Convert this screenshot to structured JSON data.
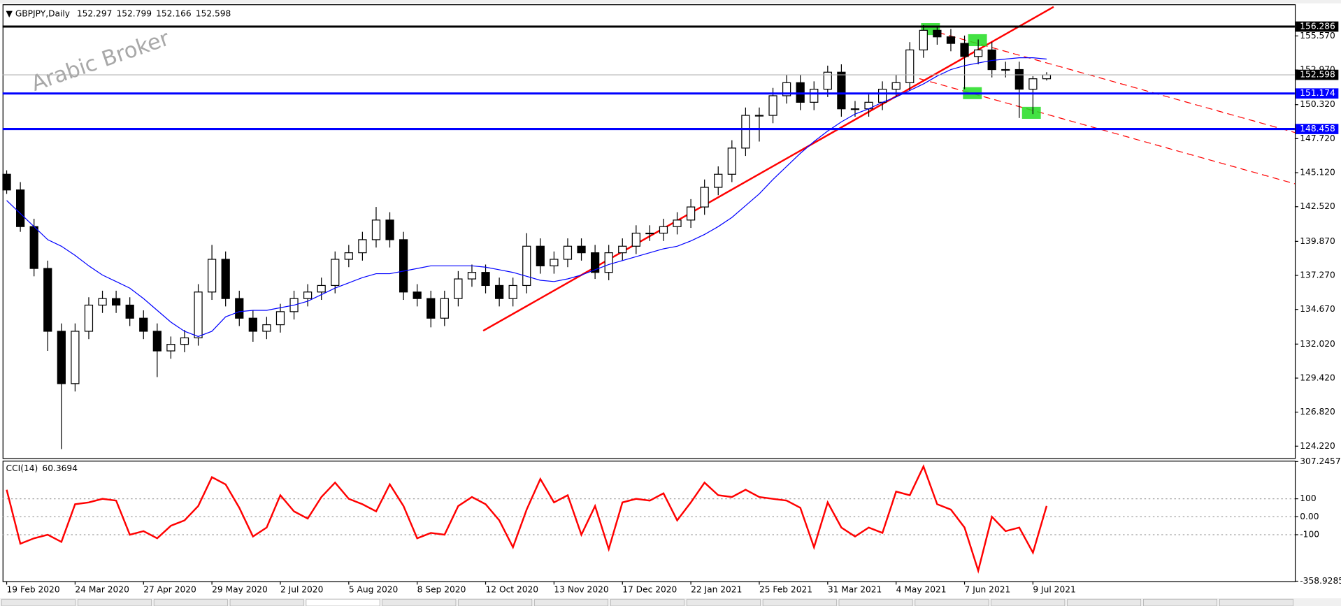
{
  "chart_data": [
    {
      "type": "candlestick",
      "title": "GBPJPY,Daily",
      "watermark": "Arabic Broker",
      "categories": [
        "19 Feb 2020",
        null,
        null,
        null,
        null,
        "24 Mar 2020",
        null,
        null,
        null,
        null,
        "27 Apr 2020",
        null,
        null,
        null,
        null,
        "29 May 2020",
        null,
        null,
        null,
        null,
        "2 Jul 2020",
        null,
        null,
        null,
        null,
        "5 Aug 2020",
        null,
        null,
        null,
        null,
        "8 Sep 2020",
        null,
        null,
        null,
        null,
        "12 Oct 2020",
        null,
        null,
        null,
        null,
        "13 Nov 2020",
        null,
        null,
        null,
        null,
        "17 Dec 2020",
        null,
        null,
        null,
        null,
        "22 Jan 2021",
        null,
        null,
        null,
        null,
        "25 Feb 2021",
        null,
        null,
        null,
        null,
        "31 Mar 2021",
        null,
        null,
        null,
        null,
        "4 May 2021",
        null,
        null,
        null,
        null,
        "7 Jun 2021",
        null,
        null,
        null,
        null,
        "9 Jul 2021",
        null
      ],
      "open": [
        145.0,
        143.8,
        141.0,
        137.8,
        133.0,
        129.0,
        133.0,
        135.0,
        135.5,
        135.0,
        134.0,
        133.0,
        131.5,
        132.0,
        132.5,
        136.0,
        138.5,
        135.5,
        134.0,
        133.0,
        133.5,
        134.5,
        135.5,
        136.0,
        136.5,
        138.5,
        139.0,
        140.0,
        141.5,
        140.0,
        136.0,
        135.5,
        134.0,
        135.5,
        137.0,
        137.5,
        136.5,
        135.5,
        136.5,
        139.5,
        138.0,
        138.5,
        139.5,
        139.0,
        137.5,
        139.0,
        139.5,
        140.5,
        140.5,
        141.0,
        141.5,
        142.5,
        144.0,
        145.0,
        147.0,
        149.5,
        149.5,
        151.0,
        152.0,
        150.5,
        151.5,
        152.8,
        150.0,
        150.0,
        150.5,
        151.5,
        152.0,
        154.5,
        156.0,
        155.5,
        155.0,
        154.0,
        154.5,
        153.0,
        153.0,
        151.5,
        152.297
      ],
      "high": [
        145.3,
        144.4,
        141.6,
        138.4,
        133.6,
        133.6,
        135.6,
        136.1,
        136.1,
        135.6,
        134.6,
        133.6,
        132.6,
        133.1,
        136.6,
        139.6,
        139.1,
        136.1,
        134.6,
        134.1,
        135.1,
        136.1,
        136.6,
        137.1,
        139.1,
        139.6,
        140.6,
        142.5,
        142.1,
        140.6,
        136.6,
        136.1,
        136.1,
        137.6,
        138.1,
        138.1,
        137.1,
        137.1,
        140.5,
        140.1,
        139.1,
        140.1,
        140.1,
        139.6,
        139.6,
        140.1,
        141.1,
        141.1,
        141.6,
        142.1,
        143.1,
        144.6,
        145.6,
        147.6,
        150.1,
        150.1,
        151.6,
        152.6,
        152.6,
        152.1,
        153.3,
        153.4,
        150.6,
        151.1,
        152.1,
        152.6,
        155.1,
        156.4,
        156.3,
        156.1,
        155.6,
        155.3,
        155.1,
        153.6,
        153.6,
        152.5,
        152.799
      ],
      "low": [
        143.5,
        140.6,
        137.2,
        131.5,
        124.0,
        128.4,
        132.4,
        134.4,
        134.4,
        133.4,
        132.4,
        129.5,
        130.9,
        131.4,
        131.9,
        135.4,
        134.9,
        133.4,
        132.2,
        132.4,
        132.9,
        133.9,
        134.9,
        135.4,
        135.9,
        137.9,
        138.4,
        139.4,
        139.4,
        135.4,
        134.9,
        133.3,
        133.4,
        134.9,
        136.4,
        135.9,
        134.9,
        134.9,
        135.9,
        137.4,
        137.4,
        137.9,
        138.4,
        137.0,
        136.9,
        138.4,
        138.9,
        139.9,
        139.9,
        140.4,
        140.9,
        141.9,
        143.4,
        144.4,
        146.4,
        147.5,
        148.9,
        150.4,
        149.9,
        149.9,
        150.9,
        149.4,
        149.4,
        149.4,
        149.9,
        150.9,
        151.4,
        153.9,
        154.9,
        154.4,
        151.5,
        153.4,
        152.4,
        152.4,
        149.3,
        149.6,
        152.166
      ],
      "close": [
        143.8,
        141.0,
        137.8,
        133.0,
        129.0,
        133.0,
        135.0,
        135.5,
        135.0,
        134.0,
        133.0,
        131.5,
        132.0,
        132.5,
        136.0,
        138.5,
        135.5,
        134.0,
        133.0,
        133.5,
        134.5,
        135.5,
        136.0,
        136.5,
        138.5,
        139.0,
        140.0,
        141.5,
        140.0,
        136.0,
        135.5,
        134.0,
        135.5,
        137.0,
        137.5,
        136.5,
        135.5,
        136.5,
        139.5,
        138.0,
        138.5,
        139.5,
        139.0,
        137.5,
        139.0,
        139.5,
        140.5,
        140.5,
        141.0,
        141.5,
        142.5,
        144.0,
        145.0,
        147.0,
        149.5,
        149.5,
        151.0,
        152.0,
        150.5,
        151.5,
        152.8,
        150.0,
        150.0,
        150.5,
        151.5,
        152.0,
        154.5,
        156.0,
        155.5,
        155.0,
        154.0,
        154.5,
        153.0,
        153.0,
        151.5,
        152.297,
        152.598
      ],
      "ma": {
        "color": "#0000ff",
        "values": [
          143.0,
          142.0,
          141.0,
          140.0,
          139.5,
          138.8,
          138.0,
          137.3,
          136.8,
          136.3,
          135.5,
          134.6,
          133.7,
          133.0,
          132.6,
          133.0,
          134.1,
          134.5,
          134.6,
          134.6,
          134.8,
          135.0,
          135.3,
          135.8,
          136.3,
          136.7,
          137.1,
          137.4,
          137.4,
          137.6,
          137.8,
          138.0,
          138.0,
          138.0,
          138.0,
          137.9,
          137.7,
          137.5,
          137.2,
          136.9,
          136.8,
          137.0,
          137.3,
          137.7,
          138.1,
          138.4,
          138.7,
          139.0,
          139.3,
          139.5,
          139.9,
          140.4,
          141.0,
          141.7,
          142.6,
          143.5,
          144.6,
          145.6,
          146.6,
          147.5,
          148.3,
          149.0,
          149.6,
          150.0,
          150.5,
          150.9,
          151.4,
          151.9,
          152.5,
          153.0,
          153.3,
          153.5,
          153.7,
          153.8,
          153.9,
          153.9,
          153.8
        ]
      },
      "ylim": [
        123.24,
        157.99
      ],
      "yticks": [
        {
          "value": 155.57,
          "label": "155.570"
        },
        {
          "value": 152.97,
          "label": "152.970"
        },
        {
          "value": 150.32,
          "label": "150.320"
        },
        {
          "value": 147.72,
          "label": "147.720"
        },
        {
          "value": 145.12,
          "label": "145.120"
        },
        {
          "value": 142.52,
          "label": "142.520"
        },
        {
          "value": 139.87,
          "label": "139.870"
        },
        {
          "value": 137.27,
          "label": "137.270"
        },
        {
          "value": 134.67,
          "label": "134.670"
        },
        {
          "value": 132.02,
          "label": "132.020"
        },
        {
          "value": 129.42,
          "label": "129.420"
        },
        {
          "value": 126.82,
          "label": "126.820"
        },
        {
          "value": 124.22,
          "label": "124.220"
        }
      ],
      "levels": [
        {
          "value": 156.286,
          "color": "#000000"
        },
        {
          "value": 151.174,
          "color": "#0000ff"
        },
        {
          "value": 148.458,
          "color": "#0000ff"
        }
      ]
    },
    {
      "type": "line",
      "title": "CCI(14)",
      "color": "#ff0000",
      "values": [
        150,
        -150,
        -120,
        -100,
        -140,
        70,
        80,
        100,
        90,
        -100,
        -80,
        -120,
        -50,
        -20,
        60,
        220,
        180,
        50,
        -110,
        -60,
        120,
        30,
        -10,
        110,
        190,
        100,
        70,
        30,
        180,
        60,
        -120,
        -90,
        -100,
        60,
        110,
        70,
        -20,
        -170,
        40,
        210,
        80,
        120,
        -100,
        60,
        -180,
        80,
        100,
        90,
        130,
        -20,
        80,
        190,
        120,
        110,
        150,
        110,
        100,
        90,
        50,
        -170,
        80,
        -60,
        -110,
        -60,
        -90,
        140,
        120,
        280,
        70,
        40,
        -60,
        -300,
        0,
        -80,
        -60,
        -200,
        60.3694
      ],
      "ylim": [
        -358.9285,
        307.2457
      ],
      "yticks": [
        307.2457,
        100,
        {
          "value": 0,
          "label": "0.00"
        },
        -100,
        -358.9285
      ]
    }
  ]
}
